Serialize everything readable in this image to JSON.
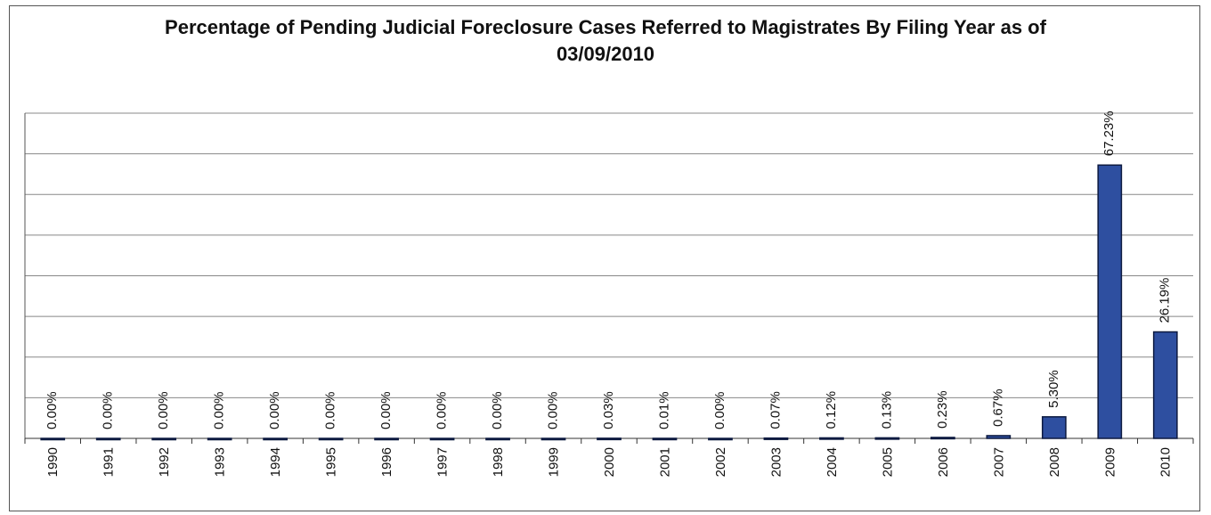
{
  "chart_data": {
    "type": "bar",
    "title": "Percentage of Pending Judicial Foreclosure Cases Referred to Magistrates By Filing Year as of 03/09/2010",
    "categories": [
      "1990",
      "1991",
      "1992",
      "1993",
      "1994",
      "1995",
      "1996",
      "1997",
      "1998",
      "1999",
      "2000",
      "2001",
      "2002",
      "2003",
      "2004",
      "2005",
      "2006",
      "2007",
      "2008",
      "2009",
      "2010"
    ],
    "values": [
      0,
      0,
      0,
      0,
      0,
      0,
      0,
      0,
      0,
      0,
      0.03,
      0.01,
      0,
      0.07,
      0.12,
      0.13,
      0.23,
      0.67,
      5.3,
      67.23,
      26.19
    ],
    "value_labels": [
      "0.00%",
      "0.00%",
      "0.00%",
      "0.00%",
      "0.00%",
      "0.00%",
      "0.00%",
      "0.00%",
      "0.00%",
      "0.00%",
      "0.03%",
      "0.01%",
      "0.00%",
      "0.07%",
      "0.12%",
      "0.13%",
      "0.23%",
      "0.67%",
      "5.30%",
      "67.23%",
      "26.19%"
    ],
    "color": "#2e4fa0",
    "ylim": [
      0,
      80
    ],
    "yticks": [
      0,
      10,
      20,
      30,
      40,
      50,
      60,
      70,
      80
    ],
    "grid": true
  }
}
